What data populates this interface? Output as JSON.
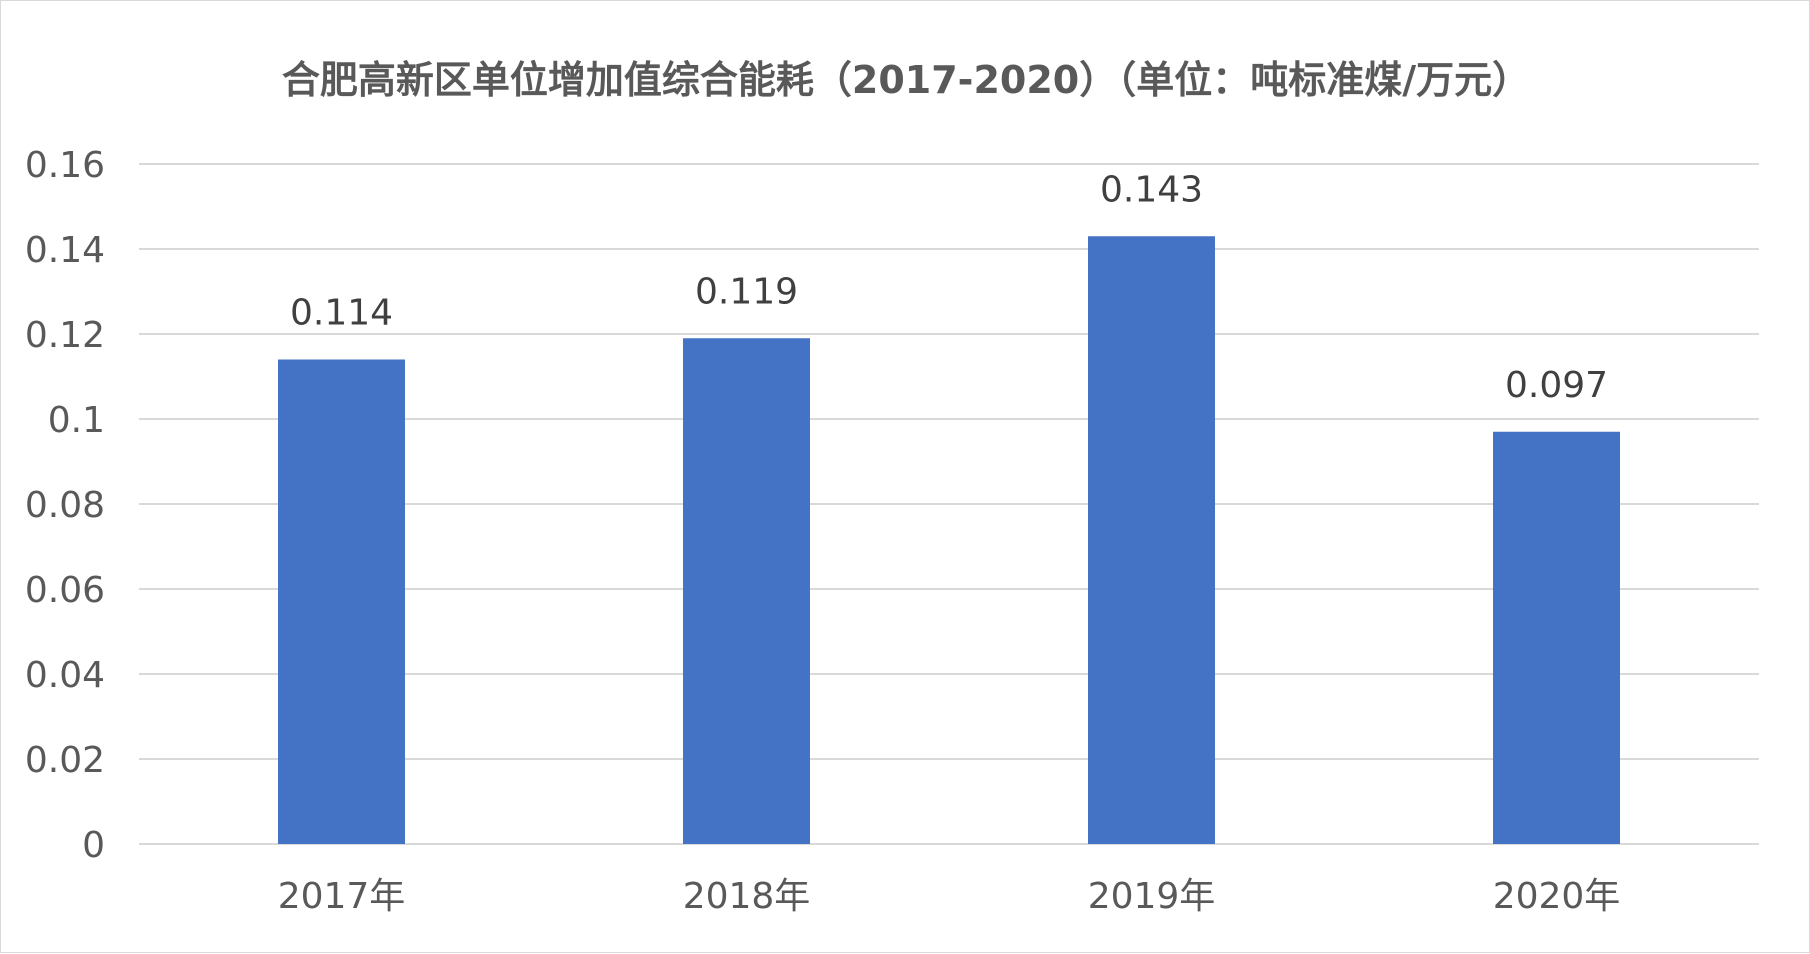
{
  "chart_data": {
    "type": "bar",
    "title": "合肥高新区单位增加值综合能耗（2017-2020）（单位：吨标准煤/万元）",
    "categories": [
      "2017年",
      "2018年",
      "2019年",
      "2020年"
    ],
    "values": [
      0.114,
      0.119,
      0.143,
      0.097
    ],
    "data_labels": [
      "0.114",
      "0.119",
      "0.143",
      "0.097"
    ],
    "y_ticks": [
      0,
      0.02,
      0.04,
      0.06,
      0.08,
      0.1,
      0.12,
      0.14,
      0.16
    ],
    "y_tick_labels": [
      "0",
      "0.02",
      "0.04",
      "0.06",
      "0.08",
      "0.1",
      "0.12",
      "0.14",
      "0.16"
    ],
    "ylim": [
      0,
      0.16
    ],
    "grid": true,
    "legend": "none",
    "bar_color": "#4472C4",
    "grid_color": "#d9d9d9"
  }
}
